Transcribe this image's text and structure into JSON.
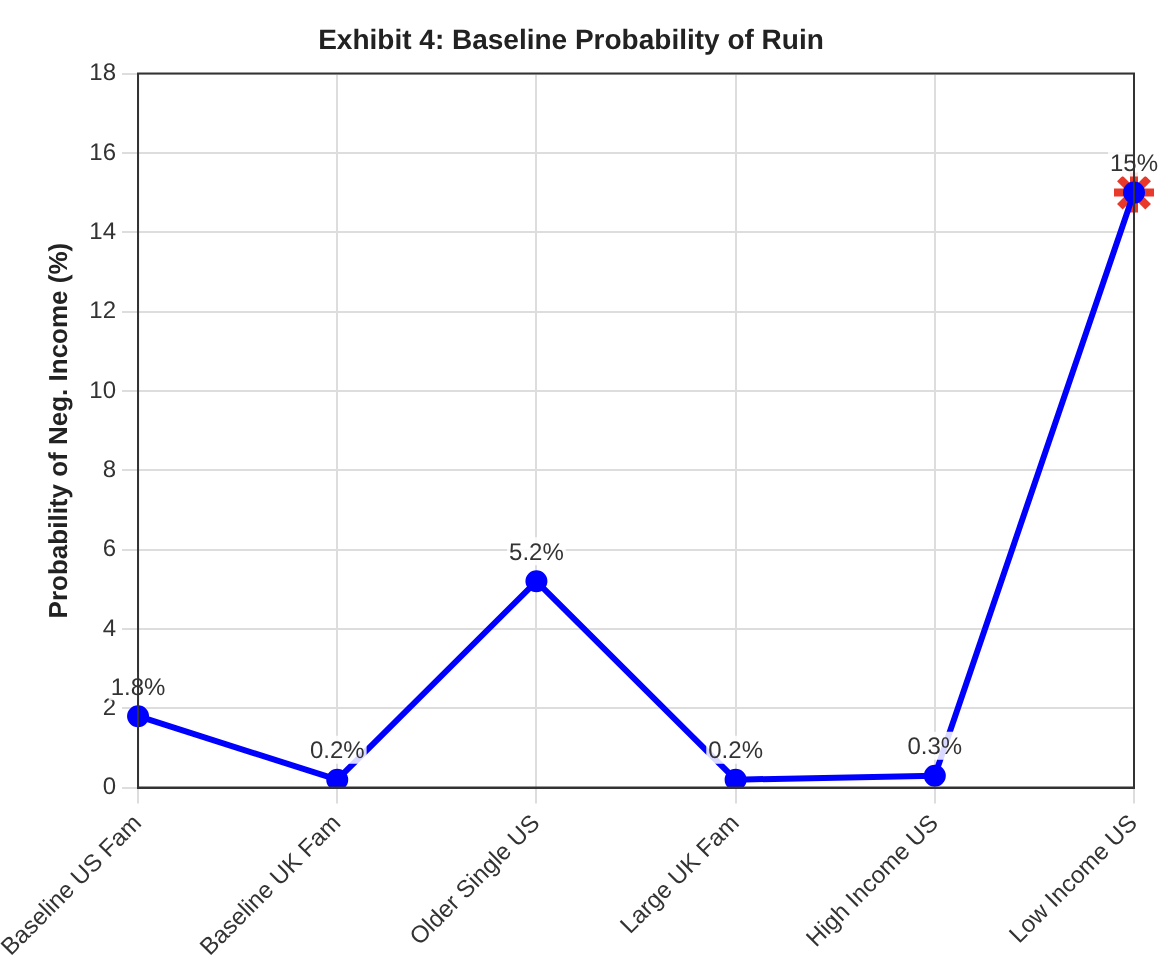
{
  "chart_data": {
    "type": "line",
    "title": "Exhibit 4: Baseline Probability of Ruin",
    "ylabel": "Probability of Neg. Income (%)",
    "categories": [
      "Baseline US Fam",
      "Baseline UK Fam",
      "Older Single US",
      "Large UK Fam",
      "High Income US",
      "Low Income US"
    ],
    "series": [
      {
        "color": "#0000ff",
        "marker": "circle",
        "values": [
          1.8,
          0.2,
          5.2,
          0.2,
          0.3,
          15
        ],
        "value_labels": [
          "1.8%",
          "0.2%",
          "5.2%",
          "0.2%",
          "0.3%",
          "15%"
        ]
      },
      {
        "type": "scatter",
        "color": "#e8392a",
        "marker": "cross",
        "x": [
          "Low Income US"
        ],
        "values": [
          15
        ]
      }
    ],
    "ylim": [
      0,
      18
    ],
    "yticks": [
      0,
      2,
      4,
      6,
      8,
      10,
      12,
      14,
      16,
      18
    ],
    "grid": true,
    "legend": false
  }
}
